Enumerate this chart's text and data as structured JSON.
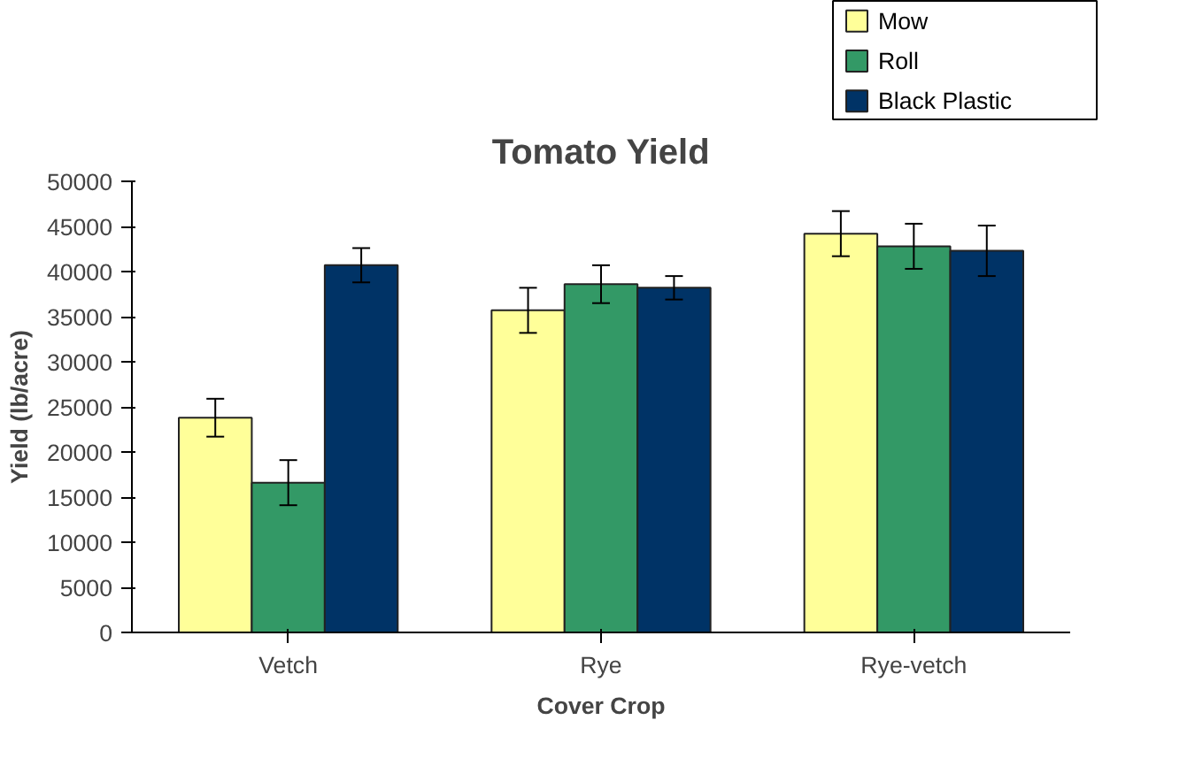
{
  "chart_data": {
    "type": "bar",
    "title": "Tomato Yield",
    "xlabel": "Cover Crop",
    "ylabel": "Yield (lb/acre)",
    "categories": [
      "Vetch",
      "Rye",
      "Rye-vetch"
    ],
    "series": [
      {
        "name": "Mow",
        "color": "#ffff99",
        "values": [
          23800,
          35700,
          44200
        ],
        "errors": [
          2100,
          2500,
          2500
        ]
      },
      {
        "name": "Roll",
        "color": "#339966",
        "values": [
          16600,
          38600,
          42800
        ],
        "errors": [
          2500,
          2100,
          2500
        ]
      },
      {
        "name": "Black Plastic",
        "color": "#003366",
        "values": [
          40700,
          38200,
          42300
        ],
        "errors": [
          1900,
          1300,
          2800
        ]
      }
    ],
    "ylim": [
      0,
      50000
    ],
    "yticks": [
      0,
      5000,
      10000,
      15000,
      20000,
      25000,
      30000,
      35000,
      40000,
      45000,
      50000
    ],
    "grid": false,
    "legend": "top right"
  }
}
